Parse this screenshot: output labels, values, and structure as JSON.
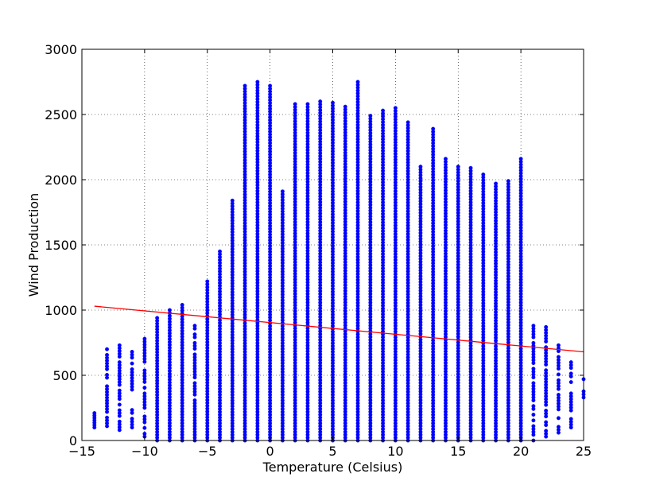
{
  "chart_data": {
    "type": "scatter",
    "xlabel": "Temperature (Celsius)",
    "ylabel": "Wind Production",
    "xlim": [
      -15,
      25
    ],
    "ylim": [
      0,
      3000
    ],
    "xticks": [
      -15,
      -10,
      -5,
      0,
      5,
      10,
      15,
      20,
      25
    ],
    "yticks": [
      0,
      500,
      1000,
      1500,
      2000,
      2500,
      3000
    ],
    "xtick_labels": [
      "−15",
      "−10",
      "−5",
      "0",
      "5",
      "10",
      "15",
      "20",
      "25"
    ],
    "ytick_labels": [
      "0",
      "500",
      "1000",
      "1500",
      "2000",
      "2500",
      "3000"
    ],
    "grid": true,
    "series": [
      {
        "kind": "scatter",
        "color": "#0000ff",
        "columns": [
          {
            "x": -14,
            "ymin": 100,
            "ymax": 210
          },
          {
            "x": -13,
            "ymin": 110,
            "ymax": 700
          },
          {
            "x": -12,
            "ymin": 80,
            "ymax": 730
          },
          {
            "x": -11,
            "ymin": 100,
            "ymax": 680
          },
          {
            "x": -10,
            "ymin": 30,
            "ymax": 780
          },
          {
            "x": -9,
            "ymin": 0,
            "ymax": 940
          },
          {
            "x": -8,
            "ymin": 0,
            "ymax": 1000
          },
          {
            "x": -7,
            "ymin": 0,
            "ymax": 1040
          },
          {
            "x": -6,
            "ymin": 0,
            "ymax": 880
          },
          {
            "x": -5,
            "ymin": 0,
            "ymax": 1220
          },
          {
            "x": -4,
            "ymin": 0,
            "ymax": 1450
          },
          {
            "x": -3,
            "ymin": 0,
            "ymax": 1840
          },
          {
            "x": -2,
            "ymin": 0,
            "ymax": 2720
          },
          {
            "x": -1,
            "ymin": 0,
            "ymax": 2750
          },
          {
            "x": 0,
            "ymin": 0,
            "ymax": 2720
          },
          {
            "x": 1,
            "ymin": 0,
            "ymax": 1910
          },
          {
            "x": 2,
            "ymin": 0,
            "ymax": 2580
          },
          {
            "x": 3,
            "ymin": 0,
            "ymax": 2580
          },
          {
            "x": 4,
            "ymin": 0,
            "ymax": 2600
          },
          {
            "x": 5,
            "ymin": 0,
            "ymax": 2590
          },
          {
            "x": 6,
            "ymin": 0,
            "ymax": 2560
          },
          {
            "x": 7,
            "ymin": 0,
            "ymax": 2750
          },
          {
            "x": 8,
            "ymin": 0,
            "ymax": 2490
          },
          {
            "x": 9,
            "ymin": 0,
            "ymax": 2530
          },
          {
            "x": 10,
            "ymin": 0,
            "ymax": 2550
          },
          {
            "x": 11,
            "ymin": 0,
            "ymax": 2440
          },
          {
            "x": 12,
            "ymin": 0,
            "ymax": 2100
          },
          {
            "x": 13,
            "ymin": 0,
            "ymax": 2390
          },
          {
            "x": 14,
            "ymin": 0,
            "ymax": 2160
          },
          {
            "x": 15,
            "ymin": 0,
            "ymax": 2100
          },
          {
            "x": 16,
            "ymin": 0,
            "ymax": 2090
          },
          {
            "x": 17,
            "ymin": 0,
            "ymax": 2040
          },
          {
            "x": 18,
            "ymin": 0,
            "ymax": 1970
          },
          {
            "x": 19,
            "ymin": 0,
            "ymax": 1990
          },
          {
            "x": 20,
            "ymin": 0,
            "ymax": 2160
          },
          {
            "x": 21,
            "ymin": 0,
            "ymax": 880
          },
          {
            "x": 22,
            "ymin": 30,
            "ymax": 870
          },
          {
            "x": 23,
            "ymin": 60,
            "ymax": 730
          },
          {
            "x": 24,
            "ymin": 100,
            "ymax": 600
          },
          {
            "x": 25,
            "ymin": 330,
            "ymax": 470
          }
        ]
      },
      {
        "kind": "line",
        "color": "#ff0000",
        "x": [
          -14,
          25
        ],
        "y": [
          1030,
          680
        ]
      }
    ]
  }
}
